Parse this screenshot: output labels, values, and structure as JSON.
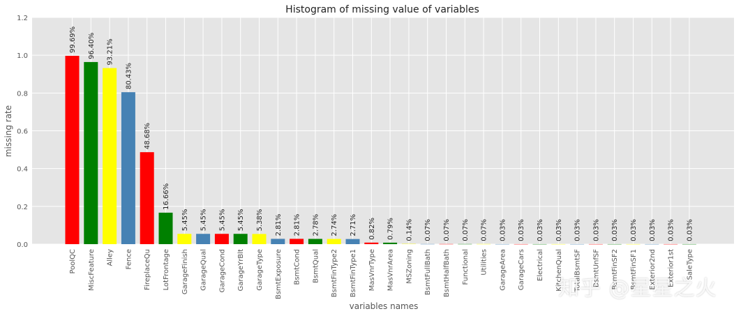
{
  "chart_data": {
    "type": "bar",
    "title": "Histogram of missing value of variables",
    "xlabel": "variables names",
    "ylabel": "missing rate",
    "ylim": [
      0,
      1.2
    ],
    "yticks": [
      "0.0",
      "0.2",
      "0.4",
      "0.6",
      "0.8",
      "1.0",
      "1.2"
    ],
    "grid": true,
    "categories": [
      "PoolQC",
      "MiscFeature",
      "Alley",
      "Fence",
      "FireplaceQu",
      "LotFrontage",
      "GarageFinish",
      "GarageQual",
      "GarageCond",
      "GarageYrBlt",
      "GarageType",
      "BsmtExposure",
      "BsmtCond",
      "BsmtQual",
      "BsmtFinType2",
      "BsmtFinType1",
      "MasVnrType",
      "MasVnrArea",
      "MSZoning",
      "BsmtFullBath",
      "BsmtHalfBath",
      "Functional",
      "Utilities",
      "GarageArea",
      "GarageCars",
      "Electrical",
      "KitchenQual",
      "TotalBsmtSF",
      "BsmtUnfSF",
      "BsmtFinSF2",
      "BsmtFinSF1",
      "Exterior2nd",
      "Exterior1st",
      "SaleType"
    ],
    "values": [
      0.9969,
      0.964,
      0.9321,
      0.8043,
      0.4868,
      0.1666,
      0.0545,
      0.0545,
      0.0545,
      0.0545,
      0.0538,
      0.0281,
      0.0281,
      0.0278,
      0.0274,
      0.0271,
      0.0082,
      0.0079,
      0.0014,
      0.0007,
      0.0007,
      0.0007,
      0.0007,
      0.0003,
      0.0003,
      0.0003,
      0.0003,
      0.0003,
      0.0003,
      0.0003,
      0.0003,
      0.0003,
      0.0003,
      0.0003
    ],
    "labels": [
      "99.69%",
      "96.40%",
      "93.21%",
      "80.43%",
      "48.68%",
      "16.66%",
      "5.45%",
      "5.45%",
      "5.45%",
      "5.45%",
      "5.38%",
      "2.81%",
      "2.81%",
      "2.78%",
      "2.74%",
      "2.71%",
      "0.82%",
      "0.79%",
      "0.14%",
      "0.07%",
      "0.07%",
      "0.07%",
      "0.07%",
      "0.03%",
      "0.03%",
      "0.03%",
      "0.03%",
      "0.03%",
      "0.03%",
      "0.03%",
      "0.03%",
      "0.03%",
      "0.03%",
      "0.03%"
    ],
    "colors": [
      "#ff0000",
      "#008000",
      "#ffff00",
      "#4682b4"
    ]
  },
  "watermark": "知乎 @星星之火",
  "style": {
    "background": "#e5e5e5",
    "grid": "#ffffff",
    "text": "#555555"
  }
}
